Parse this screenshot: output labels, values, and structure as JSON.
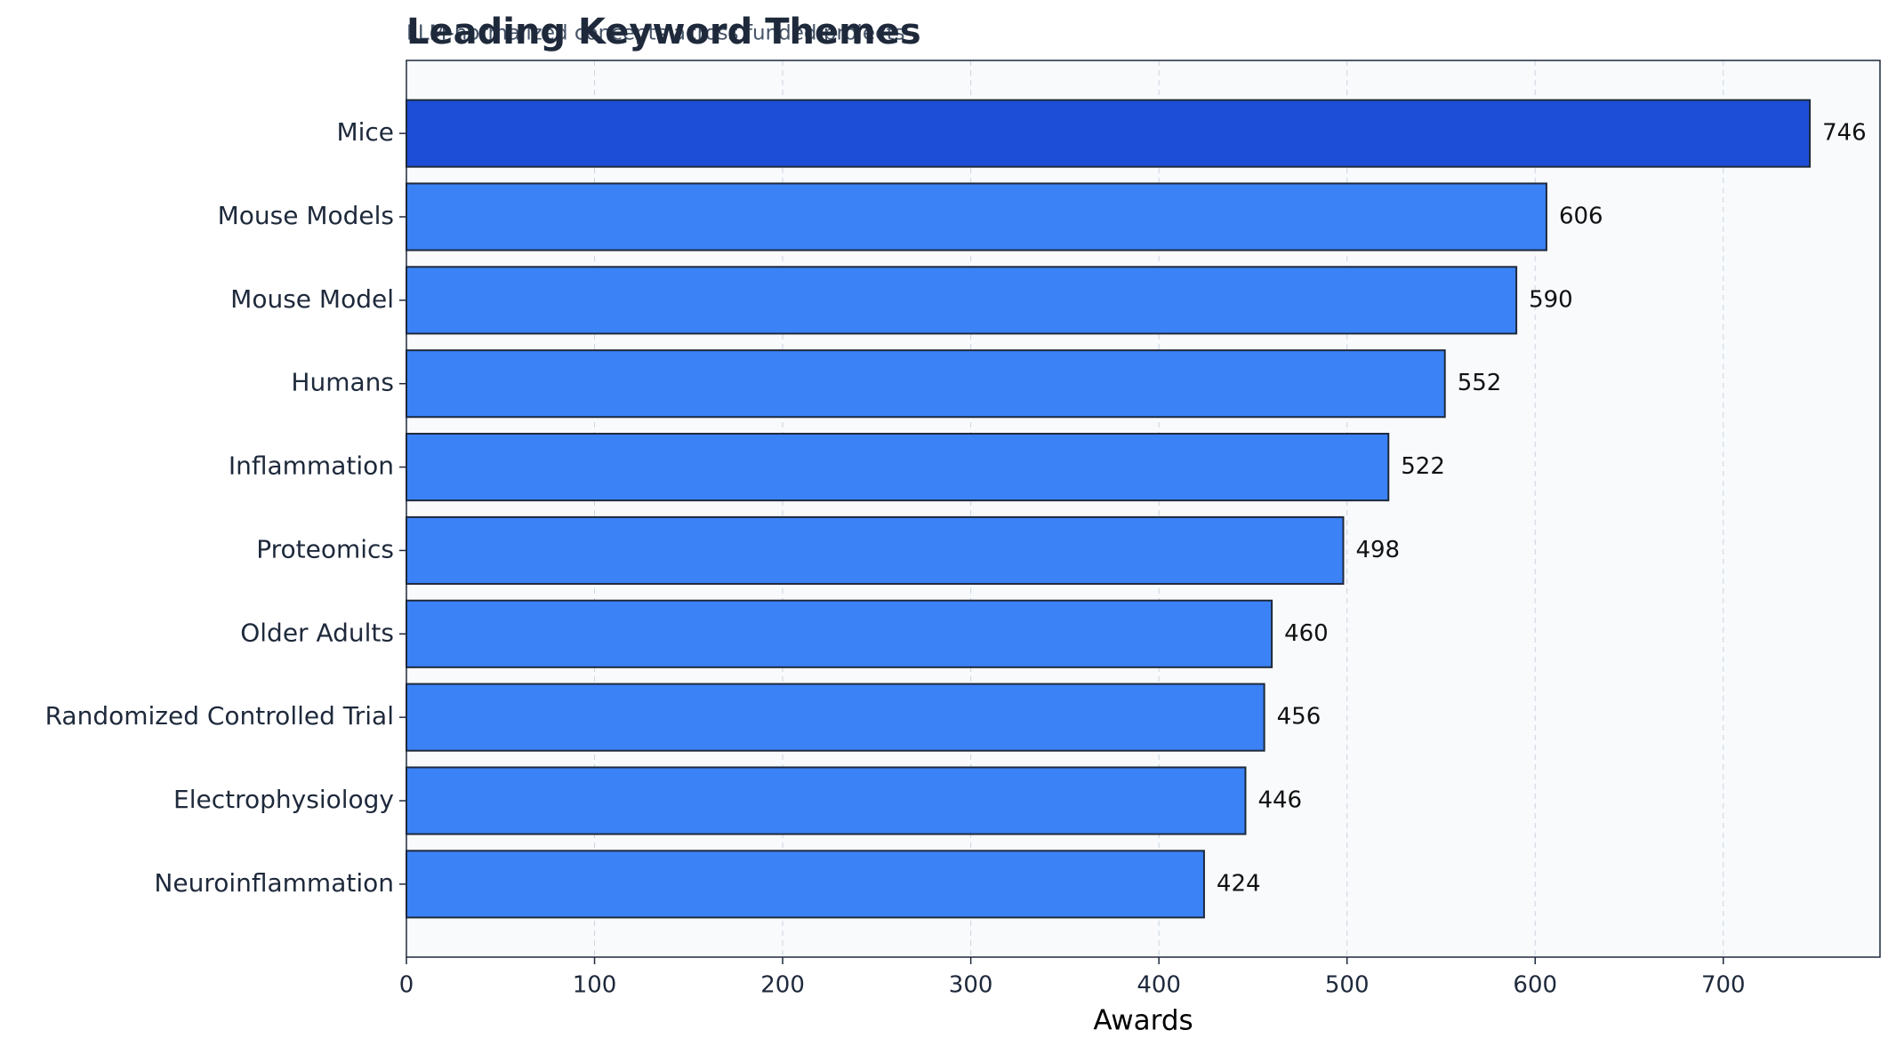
{
  "chart_data": {
    "type": "barh",
    "title": "Leading Keyword Themes",
    "subtitle": "LLM-normalized concepts across funded projects",
    "xlabel": "Awards",
    "categories": [
      "Mice",
      "Mouse Models",
      "Mouse Model",
      "Humans",
      "Inflammation",
      "Proteomics",
      "Older Adults",
      "Randomized Controlled Trial",
      "Electrophysiology",
      "Neuroinflammation"
    ],
    "values": [
      746,
      606,
      590,
      552,
      522,
      498,
      460,
      456,
      446,
      424
    ],
    "colors": [
      "#1d4ed8",
      "#3b82f6",
      "#3b82f6",
      "#3b82f6",
      "#3b82f6",
      "#3b82f6",
      "#3b82f6",
      "#3b82f6",
      "#3b82f6",
      "#3b82f6"
    ],
    "xlim": [
      0,
      783.3
    ],
    "xticks": [
      0,
      100,
      200,
      300,
      400,
      500,
      600,
      700
    ],
    "grid": true
  }
}
